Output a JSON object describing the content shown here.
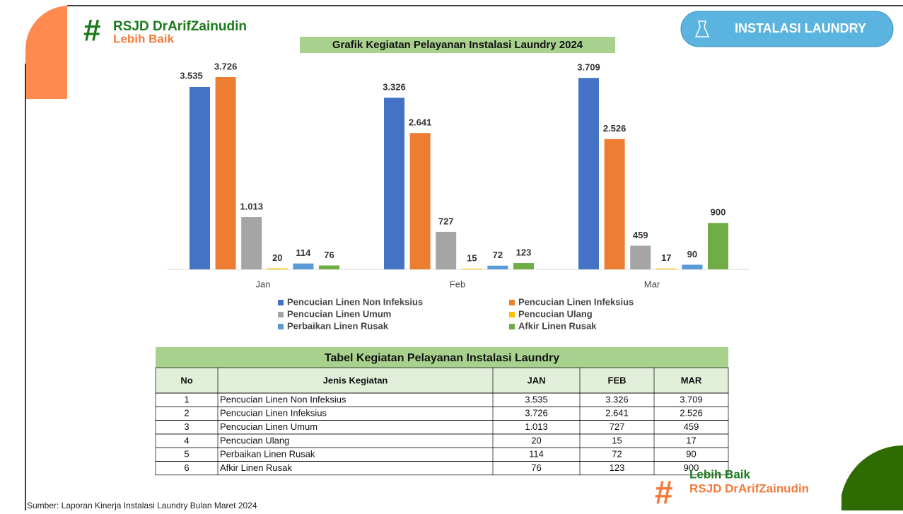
{
  "chart_data": {
    "type": "bar",
    "title": "Grafik Kegiatan Pelayanan Instalasi Laundry 2024",
    "categories": [
      "Jan",
      "Feb",
      "Mar"
    ],
    "series": [
      {
        "name": "Pencucian Linen Non Infeksius",
        "color": "#4472c4",
        "values": [
          3535,
          3326,
          3709
        ],
        "value_labels": [
          "3.535",
          "3.326",
          "3.709"
        ]
      },
      {
        "name": "Pencucian Linen Infeksius",
        "color": "#ed7d31",
        "values": [
          3726,
          2641,
          2526
        ],
        "value_labels": [
          "3.726",
          "2.641",
          "2.526"
        ]
      },
      {
        "name": "Pencucian Linen Umum",
        "color": "#a5a5a5",
        "values": [
          1013,
          727,
          459
        ],
        "value_labels": [
          "1.013",
          "727",
          "459"
        ]
      },
      {
        "name": "Pencucian Ulang",
        "color": "#ffc000",
        "values": [
          20,
          15,
          17
        ],
        "value_labels": [
          "20",
          "15",
          "17"
        ]
      },
      {
        "name": "Perbaikan Linen Rusak",
        "color": "#5b9bd5",
        "values": [
          114,
          72,
          90
        ],
        "value_labels": [
          "114",
          "72",
          "90"
        ]
      },
      {
        "name": "Afkir Linen Rusak",
        "color": "#70ad47",
        "values": [
          76,
          123,
          900
        ],
        "value_labels": [
          "76",
          "123",
          "900"
        ]
      }
    ]
  },
  "table": {
    "title": "Tabel Kegiatan Pelayanan Instalasi Laundry",
    "header": [
      "No",
      "Jenis Kegiatan",
      "JAN",
      "FEB",
      "MAR"
    ],
    "rows": [
      [
        "1",
        "Pencucian Linen Non Infeksius",
        "3.535",
        "3.326",
        "3.709"
      ],
      [
        "2",
        "Pencucian Linen Infeksius",
        "3.726",
        "2.641",
        "2.526"
      ],
      [
        "3",
        "Pencucian Linen Umum",
        "1.013",
        "727",
        "459"
      ],
      [
        "4",
        "Pencucian Ulang",
        "20",
        "15",
        "17"
      ],
      [
        "5",
        "Perbaikan Linen Rusak",
        "114",
        "72",
        "90"
      ],
      [
        "6",
        "Afkir Linen Rusak",
        "76",
        "123",
        "900"
      ]
    ]
  },
  "header": {
    "logo_line1": "RSJD DrArifZainudin",
    "logo_line2": "Lebih Baik",
    "button": "INSTALASI LAUNDRY"
  },
  "footer": {
    "source": "Sumber: Laporan Kinerja Instalasi Laundry Bulan Maret 2024",
    "logo_line1": "Lebih Baik",
    "logo_line2": "RSJD DrArifZainudin"
  }
}
